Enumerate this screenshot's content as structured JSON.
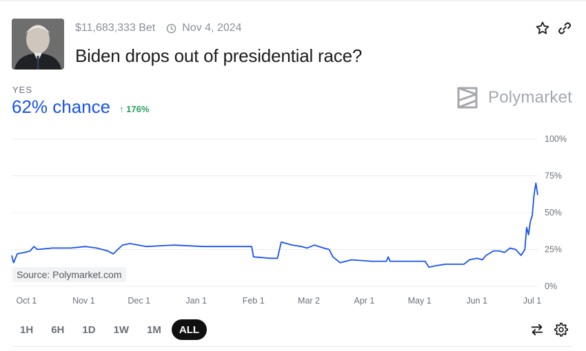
{
  "market": {
    "volume": "$11,683,333 Bet",
    "end_date": "Nov 4, 2024",
    "title": "Biden drops out of presidential race?"
  },
  "outcome": {
    "label": "YES",
    "chance": "62% chance",
    "change": "176%"
  },
  "brand": {
    "name": "Polymarket"
  },
  "source": "Source: Polymarket.com",
  "range_buttons": [
    "1H",
    "6H",
    "1D",
    "1W",
    "1M",
    "ALL"
  ],
  "active_range": "ALL",
  "icons": {
    "star": "star-icon",
    "link": "link-icon",
    "clock": "clock-icon",
    "swap": "swap-icon",
    "settings": "gear-icon",
    "brand": "polymarket-logo-icon"
  },
  "colors": {
    "accent": "#1652f0",
    "positive": "#23a35a",
    "brand_gray": "#a3a7ad"
  },
  "chart_data": {
    "type": "line",
    "xlabel": "",
    "ylabel": "",
    "ylim": [
      0,
      100
    ],
    "y_ticks": [
      "100%",
      "75%",
      "50%",
      "25%",
      "0%"
    ],
    "x_ticks": [
      "Oct 1",
      "Nov 1",
      "Dec 1",
      "Jan 1",
      "Feb 1",
      "Mar 2",
      "Apr 1",
      "May 1",
      "Jun 1",
      "Jul 1"
    ],
    "x_range": [
      "2023-09-23",
      "2024-07-04"
    ],
    "legend": "none",
    "grid": true,
    "series": [
      {
        "color": "#1652f0",
        "points": [
          [
            "2023-09-23",
            21
          ],
          [
            "2023-09-24",
            16
          ],
          [
            "2023-09-26",
            22
          ],
          [
            "2023-09-30",
            23
          ],
          [
            "2023-10-03",
            24
          ],
          [
            "2023-10-05",
            27
          ],
          [
            "2023-10-07",
            25
          ],
          [
            "2023-10-15",
            26
          ],
          [
            "2023-10-25",
            26
          ],
          [
            "2023-11-02",
            27
          ],
          [
            "2023-11-08",
            26
          ],
          [
            "2023-11-14",
            24
          ],
          [
            "2023-11-17",
            22
          ],
          [
            "2023-11-22",
            28
          ],
          [
            "2023-11-26",
            29
          ],
          [
            "2023-12-05",
            27
          ],
          [
            "2023-12-20",
            28
          ],
          [
            "2024-01-05",
            27
          ],
          [
            "2024-01-15",
            27
          ],
          [
            "2024-01-31",
            27
          ],
          [
            "2024-02-01",
            20
          ],
          [
            "2024-02-10",
            19
          ],
          [
            "2024-02-14",
            19
          ],
          [
            "2024-02-16",
            30
          ],
          [
            "2024-02-22",
            28
          ],
          [
            "2024-02-27",
            27
          ],
          [
            "2024-03-01",
            26
          ],
          [
            "2024-03-05",
            28
          ],
          [
            "2024-03-10",
            26
          ],
          [
            "2024-03-13",
            25
          ],
          [
            "2024-03-15",
            20
          ],
          [
            "2024-03-19",
            16
          ],
          [
            "2024-03-25",
            18
          ],
          [
            "2024-04-05",
            17
          ],
          [
            "2024-04-13",
            17
          ],
          [
            "2024-04-14",
            20
          ],
          [
            "2024-04-15",
            17
          ],
          [
            "2024-04-25",
            17
          ],
          [
            "2024-05-02",
            17
          ],
          [
            "2024-05-04",
            17
          ],
          [
            "2024-05-06",
            13
          ],
          [
            "2024-05-10",
            14
          ],
          [
            "2024-05-15",
            15
          ],
          [
            "2024-05-25",
            15
          ],
          [
            "2024-05-28",
            18
          ],
          [
            "2024-06-01",
            19
          ],
          [
            "2024-06-04",
            18
          ],
          [
            "2024-06-06",
            21
          ],
          [
            "2024-06-10",
            24
          ],
          [
            "2024-06-13",
            24
          ],
          [
            "2024-06-16",
            23
          ],
          [
            "2024-06-19",
            26
          ],
          [
            "2024-06-22",
            25
          ],
          [
            "2024-06-25",
            21
          ],
          [
            "2024-06-27",
            25
          ],
          [
            "2024-06-28",
            40
          ],
          [
            "2024-06-29",
            35
          ],
          [
            "2024-06-30",
            44
          ],
          [
            "2024-07-01",
            48
          ],
          [
            "2024-07-02",
            62
          ],
          [
            "2024-07-03",
            70
          ],
          [
            "2024-07-04",
            62
          ]
        ]
      }
    ]
  }
}
